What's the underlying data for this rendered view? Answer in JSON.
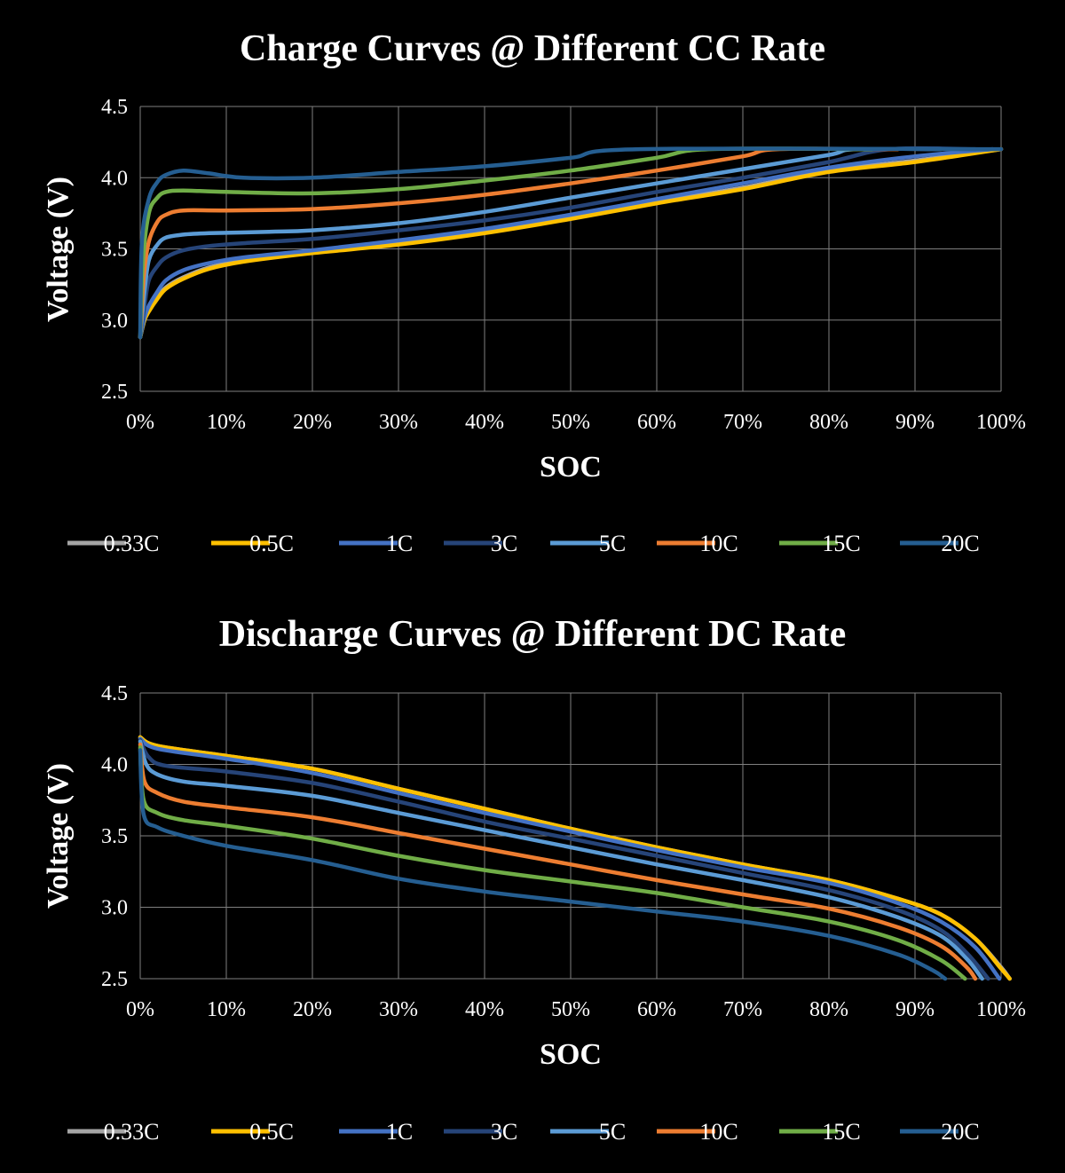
{
  "series_names": [
    "0.33C",
    "0.5C",
    "1C",
    "3C",
    "5C",
    "10C",
    "15C",
    "20C"
  ],
  "colors": {
    "0.33C": "#a5a5a5",
    "0.5C": "#ffc000",
    "1C": "#4472c4",
    "3C": "#264478",
    "5C": "#5b9bd5",
    "10C": "#ed7d31",
    "15C": "#70ad47",
    "20C": "#255e91"
  },
  "chart_data": [
    {
      "type": "line",
      "title": "Charge Curves @ Different CC Rate",
      "xlabel": "SOC",
      "ylabel": "Voltage (V)",
      "xlim": [
        0,
        100
      ],
      "ylim": [
        2.5,
        4.5
      ],
      "xticks": [
        "0%",
        "10%",
        "20%",
        "30%",
        "40%",
        "50%",
        "60%",
        "70%",
        "80%",
        "90%",
        "100%"
      ],
      "yticks": [
        "2.5",
        "3.0",
        "3.5",
        "4.0",
        "4.5"
      ],
      "legend": "bottom",
      "series": [
        {
          "name": "0.33C",
          "points": [
            [
              0,
              2.88
            ],
            [
              0.5,
              3.0
            ],
            [
              1,
              3.07
            ],
            [
              2,
              3.16
            ],
            [
              3,
              3.23
            ],
            [
              5,
              3.3
            ],
            [
              8,
              3.37
            ],
            [
              12,
              3.42
            ],
            [
              20,
              3.48
            ],
            [
              30,
              3.54
            ],
            [
              40,
              3.62
            ],
            [
              50,
              3.72
            ],
            [
              60,
              3.83
            ],
            [
              70,
              3.93
            ],
            [
              80,
              4.05
            ],
            [
              90,
              4.12
            ],
            [
              100,
              4.2
            ]
          ]
        },
        {
          "name": "0.5C",
          "points": [
            [
              0,
              2.88
            ],
            [
              0.5,
              3.0
            ],
            [
              1,
              3.06
            ],
            [
              2,
              3.15
            ],
            [
              3,
              3.22
            ],
            [
              5,
              3.29
            ],
            [
              8,
              3.36
            ],
            [
              12,
              3.41
            ],
            [
              20,
              3.47
            ],
            [
              30,
              3.53
            ],
            [
              40,
              3.61
            ],
            [
              50,
              3.71
            ],
            [
              60,
              3.82
            ],
            [
              70,
              3.92
            ],
            [
              80,
              4.04
            ],
            [
              90,
              4.11
            ],
            [
              100,
              4.2
            ]
          ]
        },
        {
          "name": "1C",
          "points": [
            [
              0,
              2.88
            ],
            [
              0.5,
              3.02
            ],
            [
              1,
              3.1
            ],
            [
              2,
              3.2
            ],
            [
              3,
              3.28
            ],
            [
              5,
              3.35
            ],
            [
              8,
              3.4
            ],
            [
              12,
              3.44
            ],
            [
              20,
              3.49
            ],
            [
              30,
              3.56
            ],
            [
              40,
              3.64
            ],
            [
              50,
              3.74
            ],
            [
              60,
              3.85
            ],
            [
              70,
              3.96
            ],
            [
              80,
              4.07
            ],
            [
              90,
              4.15
            ],
            [
              99,
              4.2
            ]
          ]
        },
        {
          "name": "3C",
          "points": [
            [
              0,
              2.88
            ],
            [
              0.5,
              3.1
            ],
            [
              1,
              3.28
            ],
            [
              2,
              3.38
            ],
            [
              3,
              3.44
            ],
            [
              5,
              3.49
            ],
            [
              8,
              3.52
            ],
            [
              12,
              3.54
            ],
            [
              20,
              3.57
            ],
            [
              30,
              3.63
            ],
            [
              40,
              3.7
            ],
            [
              50,
              3.79
            ],
            [
              60,
              3.9
            ],
            [
              70,
              4.0
            ],
            [
              80,
              4.11
            ],
            [
              87,
              4.2
            ],
            [
              97,
              4.2
            ]
          ]
        },
        {
          "name": "5C",
          "points": [
            [
              0,
              2.88
            ],
            [
              0.5,
              3.2
            ],
            [
              1,
              3.42
            ],
            [
              2,
              3.53
            ],
            [
              3,
              3.58
            ],
            [
              5,
              3.6
            ],
            [
              8,
              3.61
            ],
            [
              15,
              3.62
            ],
            [
              20,
              3.63
            ],
            [
              30,
              3.68
            ],
            [
              40,
              3.76
            ],
            [
              50,
              3.86
            ],
            [
              60,
              3.96
            ],
            [
              70,
              4.06
            ],
            [
              80,
              4.16
            ],
            [
              83,
              4.2
            ],
            [
              93,
              4.2
            ]
          ]
        },
        {
          "name": "10C",
          "points": [
            [
              0,
              2.88
            ],
            [
              0.4,
              3.3
            ],
            [
              1,
              3.55
            ],
            [
              2,
              3.69
            ],
            [
              3,
              3.74
            ],
            [
              5,
              3.77
            ],
            [
              10,
              3.77
            ],
            [
              20,
              3.78
            ],
            [
              30,
              3.82
            ],
            [
              40,
              3.88
            ],
            [
              50,
              3.96
            ],
            [
              60,
              4.05
            ],
            [
              70,
              4.15
            ],
            [
              74,
              4.2
            ],
            [
              88,
              4.2
            ]
          ]
        },
        {
          "name": "15C",
          "points": [
            [
              0,
              2.88
            ],
            [
              0.3,
              3.4
            ],
            [
              1,
              3.75
            ],
            [
              2,
              3.86
            ],
            [
              3,
              3.9
            ],
            [
              5,
              3.91
            ],
            [
              10,
              3.9
            ],
            [
              20,
              3.89
            ],
            [
              30,
              3.92
            ],
            [
              40,
              3.98
            ],
            [
              50,
              4.05
            ],
            [
              60,
              4.14
            ],
            [
              66,
              4.2
            ],
            [
              85,
              4.2
            ]
          ]
        },
        {
          "name": "20C",
          "points": [
            [
              0,
              2.88
            ],
            [
              0.2,
              3.55
            ],
            [
              1,
              3.85
            ],
            [
              2,
              3.97
            ],
            [
              3,
              4.02
            ],
            [
              5,
              4.05
            ],
            [
              8,
              4.03
            ],
            [
              12,
              4.0
            ],
            [
              20,
              4.0
            ],
            [
              30,
              4.04
            ],
            [
              40,
              4.08
            ],
            [
              50,
              4.14
            ],
            [
              58,
              4.2
            ],
            [
              100,
              4.2
            ]
          ]
        }
      ]
    },
    {
      "type": "line",
      "title": "Discharge Curves @ Different DC Rate",
      "xlabel": "SOC",
      "ylabel": "Voltage (V)",
      "xlim": [
        0,
        100
      ],
      "ylim": [
        2.5,
        4.5
      ],
      "xticks": [
        "0%",
        "10%",
        "20%",
        "30%",
        "40%",
        "50%",
        "60%",
        "70%",
        "80%",
        "90%",
        "100%"
      ],
      "yticks": [
        "2.5",
        "3.0",
        "3.5",
        "4.0",
        "4.5"
      ],
      "legend": "bottom",
      "series": [
        {
          "name": "0.33C",
          "points": [
            [
              0,
              4.19
            ],
            [
              2,
              4.13
            ],
            [
              10,
              4.06
            ],
            [
              20,
              3.97
            ],
            [
              30,
              3.83
            ],
            [
              40,
              3.69
            ],
            [
              50,
              3.55
            ],
            [
              60,
              3.42
            ],
            [
              70,
              3.3
            ],
            [
              80,
              3.19
            ],
            [
              88,
              3.06
            ],
            [
              93,
              2.95
            ],
            [
              97,
              2.78
            ],
            [
              100,
              2.58
            ],
            [
              101,
              2.5
            ]
          ]
        },
        {
          "name": "0.5C",
          "points": [
            [
              0,
              4.19
            ],
            [
              2,
              4.13
            ],
            [
              10,
              4.06
            ],
            [
              20,
              3.97
            ],
            [
              30,
              3.83
            ],
            [
              40,
              3.69
            ],
            [
              50,
              3.55
            ],
            [
              60,
              3.42
            ],
            [
              70,
              3.3
            ],
            [
              80,
              3.19
            ],
            [
              88,
              3.06
            ],
            [
              93,
              2.95
            ],
            [
              97,
              2.78
            ],
            [
              100,
              2.57
            ],
            [
              101,
              2.5
            ]
          ]
        },
        {
          "name": "1C",
          "points": [
            [
              0,
              4.18
            ],
            [
              2,
              4.11
            ],
            [
              10,
              4.04
            ],
            [
              20,
              3.94
            ],
            [
              30,
              3.8
            ],
            [
              40,
              3.66
            ],
            [
              50,
              3.53
            ],
            [
              60,
              3.4
            ],
            [
              70,
              3.28
            ],
            [
              80,
              3.17
            ],
            [
              88,
              3.03
            ],
            [
              93,
              2.9
            ],
            [
              97,
              2.72
            ],
            [
              99.8,
              2.5
            ]
          ]
        },
        {
          "name": "3C",
          "points": [
            [
              0,
              4.17
            ],
            [
              1,
              4.05
            ],
            [
              3,
              3.99
            ],
            [
              10,
              3.95
            ],
            [
              20,
              3.87
            ],
            [
              30,
              3.74
            ],
            [
              40,
              3.6
            ],
            [
              50,
              3.48
            ],
            [
              60,
              3.36
            ],
            [
              70,
              3.24
            ],
            [
              80,
              3.12
            ],
            [
              88,
              2.98
            ],
            [
              93,
              2.84
            ],
            [
              96,
              2.68
            ],
            [
              98.5,
              2.5
            ]
          ]
        },
        {
          "name": "5C",
          "points": [
            [
              0,
              4.16
            ],
            [
              0.7,
              4.0
            ],
            [
              2,
              3.93
            ],
            [
              5,
              3.88
            ],
            [
              10,
              3.85
            ],
            [
              20,
              3.78
            ],
            [
              30,
              3.66
            ],
            [
              40,
              3.54
            ],
            [
              50,
              3.42
            ],
            [
              60,
              3.3
            ],
            [
              70,
              3.19
            ],
            [
              80,
              3.07
            ],
            [
              88,
              2.93
            ],
            [
              93,
              2.8
            ],
            [
              96,
              2.64
            ],
            [
              97.8,
              2.5
            ]
          ]
        },
        {
          "name": "10C",
          "points": [
            [
              0,
              4.14
            ],
            [
              0.5,
              3.88
            ],
            [
              2,
              3.8
            ],
            [
              5,
              3.74
            ],
            [
              10,
              3.7
            ],
            [
              20,
              3.63
            ],
            [
              30,
              3.52
            ],
            [
              40,
              3.41
            ],
            [
              50,
              3.3
            ],
            [
              60,
              3.19
            ],
            [
              70,
              3.09
            ],
            [
              80,
              2.99
            ],
            [
              88,
              2.86
            ],
            [
              93,
              2.73
            ],
            [
              96,
              2.58
            ],
            [
              97,
              2.5
            ]
          ]
        },
        {
          "name": "15C",
          "points": [
            [
              0,
              4.12
            ],
            [
              0.4,
              3.75
            ],
            [
              2,
              3.66
            ],
            [
              5,
              3.61
            ],
            [
              10,
              3.57
            ],
            [
              20,
              3.48
            ],
            [
              30,
              3.36
            ],
            [
              40,
              3.26
            ],
            [
              50,
              3.18
            ],
            [
              60,
              3.1
            ],
            [
              70,
              3.0
            ],
            [
              80,
              2.9
            ],
            [
              88,
              2.77
            ],
            [
              93,
              2.63
            ],
            [
              95.8,
              2.5
            ]
          ]
        },
        {
          "name": "20C",
          "points": [
            [
              0,
              4.1
            ],
            [
              0.4,
              3.65
            ],
            [
              2,
              3.56
            ],
            [
              5,
              3.5
            ],
            [
              10,
              3.43
            ],
            [
              20,
              3.33
            ],
            [
              30,
              3.2
            ],
            [
              40,
              3.11
            ],
            [
              50,
              3.04
            ],
            [
              60,
              2.97
            ],
            [
              70,
              2.9
            ],
            [
              80,
              2.8
            ],
            [
              88,
              2.67
            ],
            [
              92,
              2.56
            ],
            [
              93.5,
              2.5
            ]
          ]
        }
      ]
    }
  ]
}
